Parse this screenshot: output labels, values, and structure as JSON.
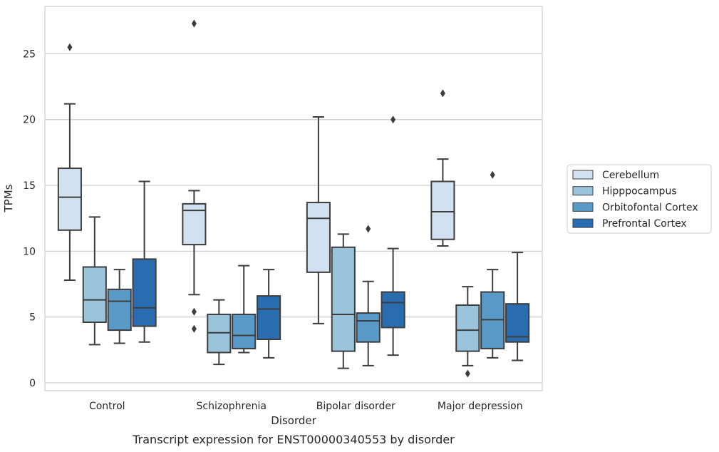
{
  "caption": "Transcript expression for ENST00000340553 by disorder",
  "chart_data": {
    "type": "box",
    "xlabel": "Disorder",
    "ylabel": "TPMs",
    "ylim": [
      -0.6,
      28.6
    ],
    "yticks": [
      0,
      5,
      10,
      15,
      20,
      25
    ],
    "grid": "horizontal",
    "legend_position": "right",
    "categories": [
      "Control",
      "Schizophrenia",
      "Bipolar disorder",
      "Major depression"
    ],
    "series": [
      {
        "name": "Cerebellum",
        "color": "#d1e1f1",
        "boxes": [
          {
            "whisker_low": 7.8,
            "q1": 11.6,
            "median": 14.1,
            "q3": 16.3,
            "whisker_high": 21.2,
            "outliers": [
              25.5
            ]
          },
          {
            "whisker_low": 6.7,
            "q1": 10.5,
            "median": 13.1,
            "q3": 13.6,
            "whisker_high": 14.6,
            "outliers": [
              27.3,
              5.4,
              4.1
            ]
          },
          {
            "whisker_low": 4.5,
            "q1": 8.4,
            "median": 12.5,
            "q3": 13.7,
            "whisker_high": 20.2,
            "outliers": []
          },
          {
            "whisker_low": 10.4,
            "q1": 10.9,
            "median": 13.0,
            "q3": 15.3,
            "whisker_high": 17.0,
            "outliers": [
              22.0
            ]
          }
        ]
      },
      {
        "name": "Hipppocampus",
        "color": "#9ac4dc",
        "boxes": [
          {
            "whisker_low": 2.9,
            "q1": 4.6,
            "median": 6.3,
            "q3": 8.8,
            "whisker_high": 12.6,
            "outliers": []
          },
          {
            "whisker_low": 1.4,
            "q1": 2.3,
            "median": 3.8,
            "q3": 5.2,
            "whisker_high": 6.3,
            "outliers": []
          },
          {
            "whisker_low": 1.1,
            "q1": 2.4,
            "median": 5.2,
            "q3": 10.3,
            "whisker_high": 11.3,
            "outliers": []
          },
          {
            "whisker_low": 1.3,
            "q1": 2.4,
            "median": 4.0,
            "q3": 5.9,
            "whisker_high": 7.3,
            "outliers": [
              0.7
            ]
          }
        ]
      },
      {
        "name": "Orbitofontal Cortex",
        "color": "#5a9ac8",
        "boxes": [
          {
            "whisker_low": 3.0,
            "q1": 4.0,
            "median": 6.2,
            "q3": 7.1,
            "whisker_high": 8.6,
            "outliers": []
          },
          {
            "whisker_low": 2.3,
            "q1": 2.6,
            "median": 3.6,
            "q3": 5.2,
            "whisker_high": 8.9,
            "outliers": []
          },
          {
            "whisker_low": 1.3,
            "q1": 3.1,
            "median": 4.7,
            "q3": 5.3,
            "whisker_high": 7.7,
            "outliers": [
              11.7
            ]
          },
          {
            "whisker_low": 1.9,
            "q1": 2.6,
            "median": 4.8,
            "q3": 6.9,
            "whisker_high": 8.6,
            "outliers": [
              15.8
            ]
          }
        ]
      },
      {
        "name": "Prefrontal Cortex",
        "color": "#2a6cb0",
        "boxes": [
          {
            "whisker_low": 3.1,
            "q1": 4.3,
            "median": 5.7,
            "q3": 9.4,
            "whisker_high": 15.3,
            "outliers": []
          },
          {
            "whisker_low": 1.9,
            "q1": 3.3,
            "median": 5.6,
            "q3": 6.6,
            "whisker_high": 8.6,
            "outliers": []
          },
          {
            "whisker_low": 2.1,
            "q1": 4.2,
            "median": 6.1,
            "q3": 6.9,
            "whisker_high": 10.2,
            "outliers": [
              20.0
            ]
          },
          {
            "whisker_low": 1.7,
            "q1": 3.1,
            "median": 3.5,
            "q3": 6.0,
            "whisker_high": 9.9,
            "outliers": []
          }
        ]
      }
    ]
  }
}
